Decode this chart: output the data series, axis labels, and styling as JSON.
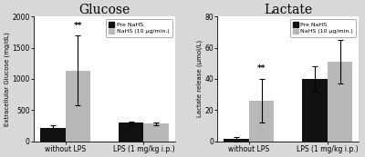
{
  "glucose": {
    "title": "Glucose",
    "ylabel": "Extracellular Glucose (mg/dL)",
    "ylim": [
      0,
      2000
    ],
    "yticks": [
      0,
      500,
      1000,
      1500,
      2000
    ],
    "groups": [
      "without LPS",
      "LPS (1 mg/kg i.p.)"
    ],
    "pre_nahs": [
      220,
      295
    ],
    "pre_nahs_err": [
      35,
      18
    ],
    "nahs": [
      1130,
      285
    ],
    "nahs_err": [
      560,
      22
    ],
    "significance_nahs": [
      "**",
      ""
    ],
    "legend_labels": [
      "Pre NaHS",
      "NaHS (10 μg/min.)"
    ]
  },
  "lactate": {
    "title": "Lactate",
    "ylabel": "Lactate release (μmol/L)",
    "ylim": [
      0,
      80
    ],
    "yticks": [
      0,
      20,
      40,
      60,
      80
    ],
    "groups": [
      "without LPS",
      "LPS (1 mg/kg i.p.)"
    ],
    "pre_nahs": [
      1.5,
      40
    ],
    "pre_nahs_err": [
      1.5,
      8
    ],
    "nahs": [
      26,
      51
    ],
    "nahs_err": [
      14,
      14
    ],
    "significance_nahs": [
      "**",
      "*"
    ],
    "legend_labels": [
      "Pre NaHS",
      "NaHS (10 μg/min.)"
    ]
  },
  "bar_width": 0.32,
  "black_color": "#111111",
  "gray_color": "#b8b8b8",
  "plot_bg": "#ffffff",
  "fig_bg": "#d8d8d8"
}
